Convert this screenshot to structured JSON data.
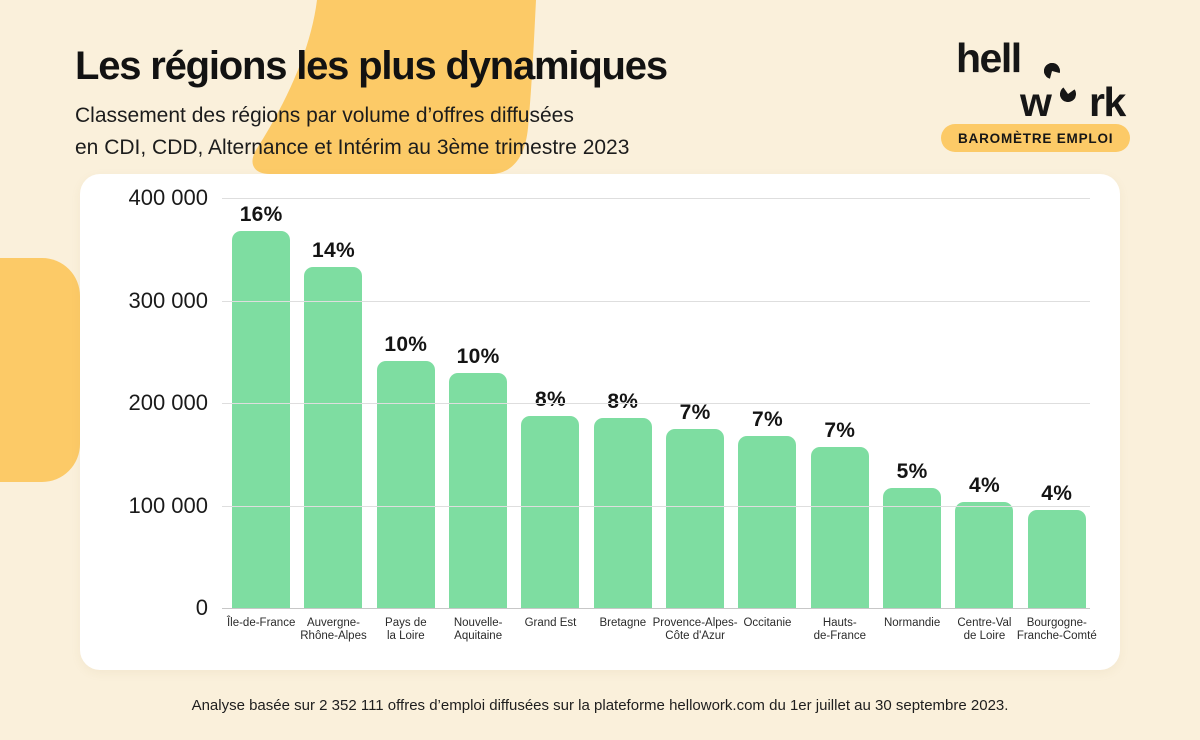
{
  "page": {
    "background_color": "#faf0db",
    "accent_yellow": "#fcca67",
    "bar_green": "#7edda1",
    "card_color": "#ffffff"
  },
  "header": {
    "title": "Les régions les plus dynamiques",
    "subtitle_line1": "Classement des régions par volume d’offres diffusées",
    "subtitle_line2": "en CDI, CDD, Alternance et Intérim au 3ème trimestre 2023"
  },
  "logo": {
    "line1_text": "hell",
    "line2_left": "w",
    "line2_right": "rk",
    "badge": "BAROMÈTRE EMPLOI"
  },
  "footer": {
    "text": "Analyse basée sur 2 352 111 offres d’emploi diffusées sur la plateforme hellowork.com du 1er juillet au 30 septembre 2023."
  },
  "chart_data": {
    "type": "bar",
    "title": "Les régions les plus dynamiques",
    "xlabel": "",
    "ylabel": "",
    "legend": false,
    "grid": true,
    "ylim": [
      0,
      400000
    ],
    "bar_color": "#7edda1",
    "categories": [
      "Île-de-France",
      "Auvergne-Rhône-Alpes",
      "Pays de la Loire",
      "Nouvelle-Aquitaine",
      "Grand Est",
      "Bretagne",
      "Provence-Alpes-Côte d'Azur",
      "Occitanie",
      "Hauts-de-France",
      "Normandie",
      "Centre-Val de Loire",
      "Bourgogne-Franche-Comté"
    ],
    "category_label_lines": [
      [
        "Île-de-France"
      ],
      [
        "Auvergne-",
        "Rhône-Alpes"
      ],
      [
        "Pays de",
        "la Loire"
      ],
      [
        "Nouvelle-",
        "Aquitaine"
      ],
      [
        "Grand Est"
      ],
      [
        "Bretagne"
      ],
      [
        "Provence-Alpes-",
        "Côte d'Azur"
      ],
      [
        "Occitanie"
      ],
      [
        "Hauts-",
        "de-France"
      ],
      [
        "Normandie"
      ],
      [
        "Centre-Val",
        "de Loire"
      ],
      [
        "Bourgogne-",
        "Franche-Comté"
      ]
    ],
    "values": [
      368000,
      333000,
      241000,
      229000,
      187000,
      185000,
      175000,
      168000,
      157000,
      117000,
      103000,
      96000
    ],
    "bar_labels": [
      "16%",
      "14%",
      "10%",
      "10%",
      "8%",
      "8%",
      "7%",
      "7%",
      "7%",
      "5%",
      "4%",
      "4%"
    ],
    "yticks": [
      {
        "label": "400 000",
        "value": 400000
      },
      {
        "label": "300 000",
        "value": 300000
      },
      {
        "label": "200 000",
        "value": 200000
      },
      {
        "label": "100 000",
        "value": 100000
      },
      {
        "label": "0",
        "value": 0
      }
    ]
  }
}
